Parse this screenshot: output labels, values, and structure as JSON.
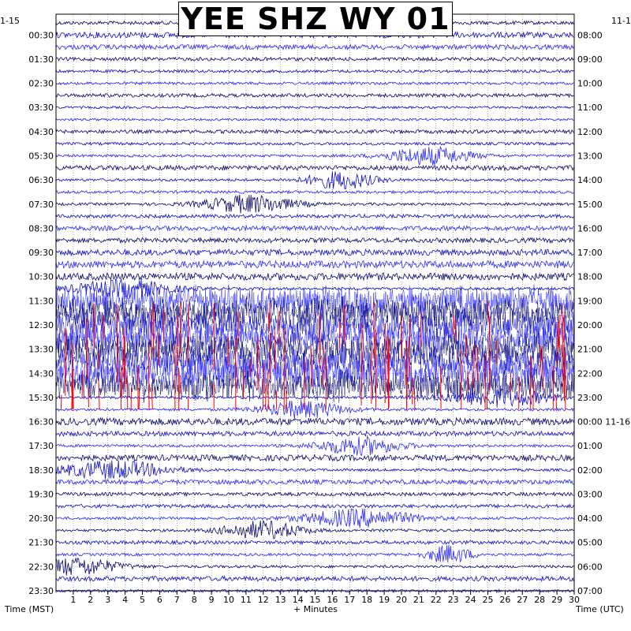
{
  "title": "YEE SHZ WY 01",
  "left_date": "1-15",
  "right_date": "11-1",
  "right_date_rollover": "11-16",
  "xlabel": "+ Minutes",
  "left_axis_label": "Time (MST)",
  "right_axis_label": "Time (UTC)",
  "colors": {
    "trace_dark": "#0a0a6e",
    "trace_mid": "#1010c8",
    "trace_light": "#2a2aff",
    "clipped": "#ff0000",
    "grid": "#7a7a7a",
    "background": "#ffffff"
  },
  "chart_data": {
    "type": "helicorder",
    "title": "YEE SHZ WY 01",
    "xlabel": "+ Minutes",
    "x_ticks": [
      "1",
      "2",
      "3",
      "4",
      "5",
      "6",
      "7",
      "8",
      "9",
      "10",
      "11",
      "12",
      "13",
      "14",
      "15",
      "16",
      "17",
      "18",
      "19",
      "20",
      "21",
      "22",
      "23",
      "24",
      "25",
      "26",
      "27",
      "28",
      "29",
      "30"
    ],
    "xlim": [
      0,
      30
    ],
    "line_minutes": 30,
    "line_count": 48,
    "left_tick_labels": [
      "00:30",
      "01:30",
      "02:30",
      "03:30",
      "04:30",
      "05:30",
      "06:30",
      "07:30",
      "08:30",
      "09:30",
      "10:30",
      "11:30",
      "12:30",
      "13:30",
      "14:30",
      "15:30",
      "16:30",
      "17:30",
      "18:30",
      "19:30",
      "20:30",
      "21:30",
      "22:30",
      "23:30"
    ],
    "right_tick_labels": [
      "08:00",
      "09:00",
      "10:00",
      "11:00",
      "12:00",
      "13:00",
      "14:00",
      "15:00",
      "16:00",
      "17:00",
      "18:00",
      "19:00",
      "20:00",
      "21:00",
      "22:00",
      "23:00",
      "00:00",
      "01:00",
      "02:00",
      "03:00",
      "04:00",
      "05:00",
      "06:00",
      "07:00"
    ],
    "series": [
      {
        "line_amplitudes": [
          0.15,
          0.25,
          0.2,
          0.15,
          0.12,
          0.12,
          0.15,
          0.1,
          0.1,
          0.15,
          0.12,
          0.5,
          0.2,
          0.7,
          0.12,
          0.8,
          0.15,
          0.2,
          0.2,
          0.25,
          0.3,
          0.3,
          0.8,
          3.0,
          4.0,
          6.0,
          6.0,
          7.0,
          7.0,
          6.0,
          6.0,
          1.5,
          0.8,
          0.3,
          0.2,
          0.8,
          0.25,
          0.8,
          0.2,
          0.15,
          0.15,
          0.7,
          0.8,
          0.15,
          0.9,
          0.6,
          0.2,
          0.12
        ]
      },
      {
        "clipped_line_range": [
          23,
          31
        ]
      }
    ]
  }
}
